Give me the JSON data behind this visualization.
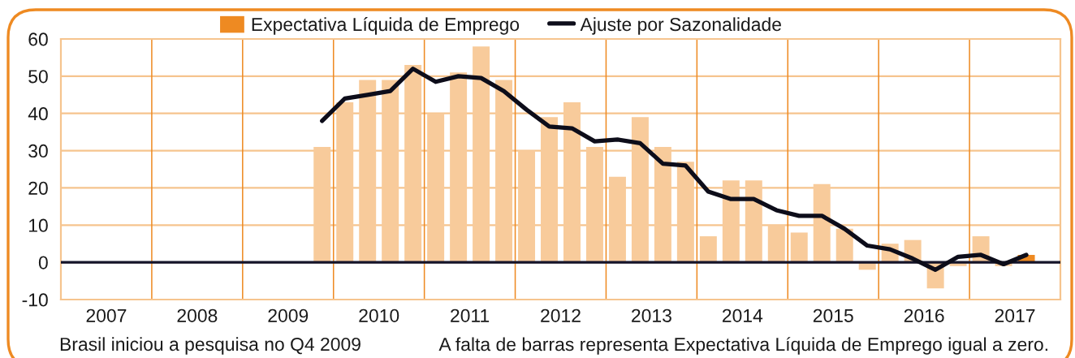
{
  "chart_data": {
    "type": "bar",
    "x": [
      2009.875,
      2010.125,
      2010.375,
      2010.625,
      2010.875,
      2011.125,
      2011.375,
      2011.625,
      2011.875,
      2012.125,
      2012.375,
      2012.625,
      2012.875,
      2013.125,
      2013.375,
      2013.625,
      2013.875,
      2014.125,
      2014.375,
      2014.625,
      2014.875,
      2015.125,
      2015.375,
      2015.625,
      2015.875,
      2016.125,
      2016.375,
      2016.625,
      2016.875,
      2017.125,
      2017.375,
      2017.625
    ],
    "series": [
      {
        "name": "Expectativa Líquida de Emprego",
        "color": "#ee8a22",
        "colors": [
          "#f8cb9b",
          "#f8cb9b",
          "#f8cb9b",
          "#f8cb9b",
          "#f8cb9b",
          "#f8cb9b",
          "#f8cb9b",
          "#f8cb9b",
          "#f8cb9b",
          "#f8cb9b",
          "#f8cb9b",
          "#f8cb9b",
          "#f8cb9b",
          "#f8cb9b",
          "#f8cb9b",
          "#f8cb9b",
          "#f8cb9b",
          "#f8cb9b",
          "#f8cb9b",
          "#f8cb9b",
          "#f8cb9b",
          "#f8cb9b",
          "#f8cb9b",
          "#f8cb9b",
          "#f8cb9b",
          "#f8cb9b",
          "#f8cb9b",
          "#f8cb9b",
          "#f8cb9b",
          "#f8cb9b",
          "#f8cb9b",
          "#ee8a22"
        ],
        "values": [
          31,
          43,
          49,
          49,
          53,
          40,
          51,
          58,
          49,
          30,
          39,
          43,
          31,
          23,
          39,
          31,
          27,
          7,
          22,
          22,
          10,
          8,
          21,
          9,
          -2,
          5,
          6,
          -7,
          -1,
          7,
          -1,
          2
        ]
      },
      {
        "name": "Ajuste por Sazonalidade",
        "type": "line",
        "color": "#0d0d1a",
        "values": [
          38,
          44,
          45,
          46,
          52,
          48.5,
          50,
          49.5,
          46,
          41,
          36.5,
          36,
          32.5,
          33,
          32,
          26.5,
          26,
          19,
          17,
          17,
          14,
          12.5,
          12.5,
          9,
          4.5,
          3.5,
          1,
          -2,
          1.5,
          2,
          -0.5,
          2
        ]
      }
    ],
    "xlim": [
      2007,
      2018
    ],
    "xticks": [
      {
        "value": 2007.5,
        "label": "2007"
      },
      {
        "value": 2008.5,
        "label": "2008"
      },
      {
        "value": 2009.5,
        "label": "2009"
      },
      {
        "value": 2010.5,
        "label": "2010"
      },
      {
        "value": 2011.5,
        "label": "2011"
      },
      {
        "value": 2012.5,
        "label": "2012"
      },
      {
        "value": 2013.5,
        "label": "2013"
      },
      {
        "value": 2014.5,
        "label": "2014"
      },
      {
        "value": 2015.5,
        "label": "2015"
      },
      {
        "value": 2016.5,
        "label": "2016"
      },
      {
        "value": 2017.5,
        "label": "2017"
      }
    ],
    "ylim": [
      -10,
      60
    ],
    "yticks": [
      -10,
      0,
      10,
      20,
      30,
      40,
      50,
      60
    ],
    "grid": "y",
    "ref_lines": [
      {
        "axis": "x",
        "value": 2008,
        "color": "#ee8a22"
      },
      {
        "axis": "x",
        "value": 2009,
        "color": "#ee8a22"
      },
      {
        "axis": "x",
        "value": 2010,
        "color": "#ee8a22"
      },
      {
        "axis": "x",
        "value": 2011,
        "color": "#ee8a22"
      },
      {
        "axis": "x",
        "value": 2012,
        "color": "#ee8a22"
      },
      {
        "axis": "x",
        "value": 2013,
        "color": "#ee8a22"
      },
      {
        "axis": "x",
        "value": 2014,
        "color": "#ee8a22"
      },
      {
        "axis": "x",
        "value": 2015,
        "color": "#ee8a22"
      },
      {
        "axis": "x",
        "value": 2016,
        "color": "#ee8a22"
      },
      {
        "axis": "x",
        "value": 2017,
        "color": "#ee8a22"
      },
      {
        "axis": "y",
        "value": 0,
        "color": "#14142a"
      }
    ],
    "legend": "top",
    "annotations": [
      "Brasil iniciou a pesquisa no Q4 2009",
      "A falta de barras representa Expectativa Líquida de Emprego igual a zero."
    ]
  }
}
